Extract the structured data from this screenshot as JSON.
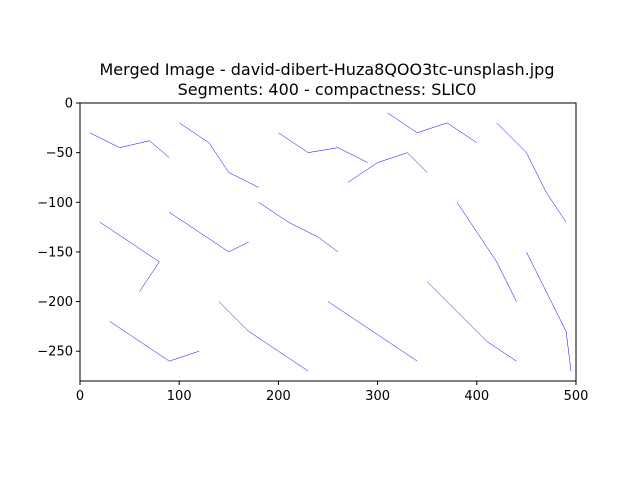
{
  "chart_data": {
    "type": "line",
    "title_line1": "Merged Image - david-dibert-Huza8QOO3tc-unsplash.jpg",
    "title_line2": "Segments: 400 - compactness: SLIC0",
    "xlabel": "",
    "ylabel": "",
    "xlim": [
      0,
      500
    ],
    "ylim": [
      -280,
      0
    ],
    "x_ticks": [
      0,
      100,
      200,
      300,
      400,
      500
    ],
    "x_tick_labels": [
      "0",
      "100",
      "200",
      "300",
      "400",
      "500"
    ],
    "y_ticks": [
      0,
      -50,
      -100,
      -150,
      -200,
      -250
    ],
    "y_tick_labels": [
      "0",
      "−50",
      "−100",
      "−150",
      "−200",
      "−250"
    ],
    "grid": false,
    "line_color": "#0000ff",
    "series": [
      {
        "values": [
          [
            [
              10,
              -30
            ],
            [
              40,
              -45
            ],
            [
              70,
              -38
            ],
            [
              90,
              -55
            ]
          ],
          [
            [
              100,
              -20
            ],
            [
              130,
              -40
            ],
            [
              150,
              -70
            ],
            [
              180,
              -85
            ]
          ],
          [
            [
              200,
              -30
            ],
            [
              230,
              -50
            ],
            [
              260,
              -45
            ],
            [
              290,
              -60
            ]
          ],
          [
            [
              310,
              -10
            ],
            [
              340,
              -30
            ],
            [
              370,
              -20
            ],
            [
              400,
              -40
            ]
          ],
          [
            [
              420,
              -20
            ],
            [
              450,
              -50
            ],
            [
              470,
              -90
            ],
            [
              490,
              -120
            ]
          ],
          [
            [
              20,
              -120
            ],
            [
              50,
              -140
            ],
            [
              80,
              -160
            ],
            [
              60,
              -190
            ]
          ],
          [
            [
              90,
              -110
            ],
            [
              120,
              -130
            ],
            [
              150,
              -150
            ],
            [
              170,
              -140
            ]
          ],
          [
            [
              180,
              -100
            ],
            [
              210,
              -120
            ],
            [
              240,
              -135
            ],
            [
              260,
              -150
            ]
          ],
          [
            [
              270,
              -80
            ],
            [
              300,
              -60
            ],
            [
              330,
              -50
            ],
            [
              350,
              -70
            ]
          ],
          [
            [
              380,
              -100
            ],
            [
              400,
              -130
            ],
            [
              420,
              -160
            ],
            [
              440,
              -200
            ]
          ],
          [
            [
              30,
              -220
            ],
            [
              60,
              -240
            ],
            [
              90,
              -260
            ],
            [
              120,
              -250
            ]
          ],
          [
            [
              140,
              -200
            ],
            [
              170,
              -230
            ],
            [
              200,
              -250
            ],
            [
              230,
              -270
            ]
          ],
          [
            [
              250,
              -200
            ],
            [
              280,
              -220
            ],
            [
              310,
              -240
            ],
            [
              340,
              -260
            ]
          ],
          [
            [
              350,
              -180
            ],
            [
              380,
              -210
            ],
            [
              410,
              -240
            ],
            [
              440,
              -260
            ]
          ],
          [
            [
              450,
              -150
            ],
            [
              470,
              -190
            ],
            [
              490,
              -230
            ],
            [
              495,
              -270
            ]
          ]
        ]
      }
    ]
  }
}
